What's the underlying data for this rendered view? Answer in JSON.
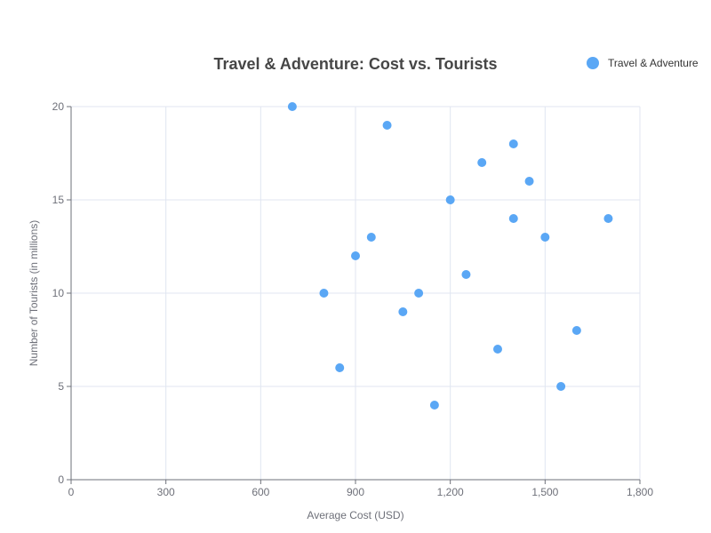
{
  "chart_data": {
    "type": "scatter",
    "title": "Travel & Adventure: Cost vs. Tourists",
    "xlabel": "Average Cost (USD)",
    "ylabel": "Number of Tourists (in millions)",
    "xlim": [
      0,
      1800
    ],
    "ylim": [
      0,
      20
    ],
    "xticks": [
      0,
      300,
      600,
      900,
      1200,
      1500,
      1800
    ],
    "xtick_labels": [
      "0",
      "300",
      "600",
      "900",
      "1,200",
      "1,500",
      "1,800"
    ],
    "yticks": [
      0,
      5,
      10,
      15,
      20
    ],
    "ytick_labels": [
      "0",
      "5",
      "10",
      "15",
      "20"
    ],
    "grid": true,
    "legend_position": "top-right",
    "series": [
      {
        "name": "Travel & Adventure",
        "color": "#5aa7f5",
        "points": [
          {
            "x": 700,
            "y": 20
          },
          {
            "x": 1000,
            "y": 19
          },
          {
            "x": 1400,
            "y": 18
          },
          {
            "x": 1300,
            "y": 17
          },
          {
            "x": 1450,
            "y": 16
          },
          {
            "x": 1200,
            "y": 15
          },
          {
            "x": 1400,
            "y": 14
          },
          {
            "x": 1700,
            "y": 14
          },
          {
            "x": 950,
            "y": 13
          },
          {
            "x": 1500,
            "y": 13
          },
          {
            "x": 900,
            "y": 12
          },
          {
            "x": 1250,
            "y": 11
          },
          {
            "x": 800,
            "y": 10
          },
          {
            "x": 1100,
            "y": 10
          },
          {
            "x": 1050,
            "y": 9
          },
          {
            "x": 1600,
            "y": 8
          },
          {
            "x": 1350,
            "y": 7
          },
          {
            "x": 850,
            "y": 6
          },
          {
            "x": 1550,
            "y": 5
          },
          {
            "x": 1150,
            "y": 4
          }
        ]
      }
    ]
  }
}
